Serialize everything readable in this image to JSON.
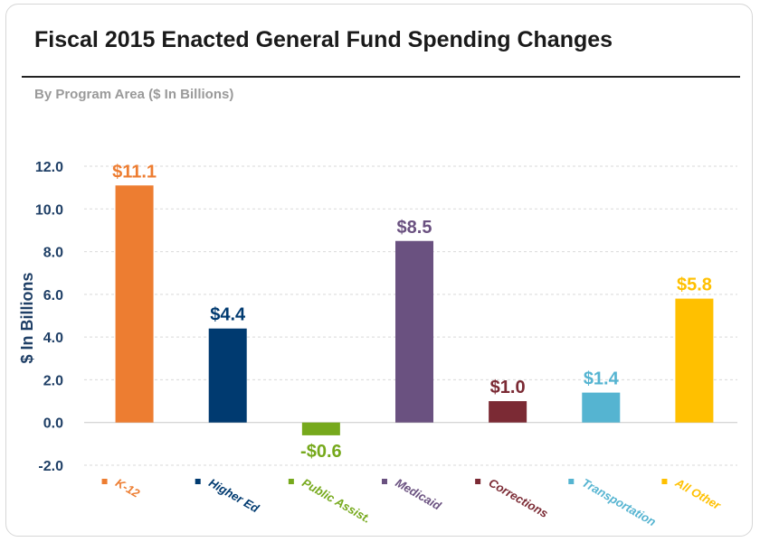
{
  "title": "Fiscal 2015 Enacted General Fund Spending Changes",
  "subtitle": "By Program Area ($ In Billions)",
  "chart_data": {
    "type": "bar",
    "title": "Fiscal 2015 Enacted General Fund Spending Changes",
    "subtitle": "By Program Area ($ In Billions)",
    "xlabel": "",
    "ylabel": "$ In Billions",
    "ylim": [
      -2.0,
      12.0
    ],
    "yticks": [
      -2.0,
      0.0,
      2.0,
      4.0,
      6.0,
      8.0,
      10.0,
      12.0
    ],
    "ytick_labels": [
      "-2.0",
      "0.0",
      "2.0",
      "4.0",
      "6.0",
      "8.0",
      "10.0",
      "12.0"
    ],
    "grid": true,
    "legend_position": "bottom",
    "categories": [
      "K-12",
      "Higher Ed",
      "Public Assist.",
      "Medicaid",
      "Corrections",
      "Transportation",
      "All Other"
    ],
    "values": [
      11.1,
      4.4,
      -0.6,
      8.5,
      1.0,
      1.4,
      5.8
    ],
    "data_labels": [
      "$11.1",
      "$4.4",
      "-$0.6",
      "$8.5",
      "$1.0",
      "$1.4",
      "$5.8"
    ],
    "colors": [
      "#ed7d31",
      "#003a70",
      "#76a91c",
      "#6a5180",
      "#7b2a34",
      "#55b4d1",
      "#ffc000"
    ]
  }
}
